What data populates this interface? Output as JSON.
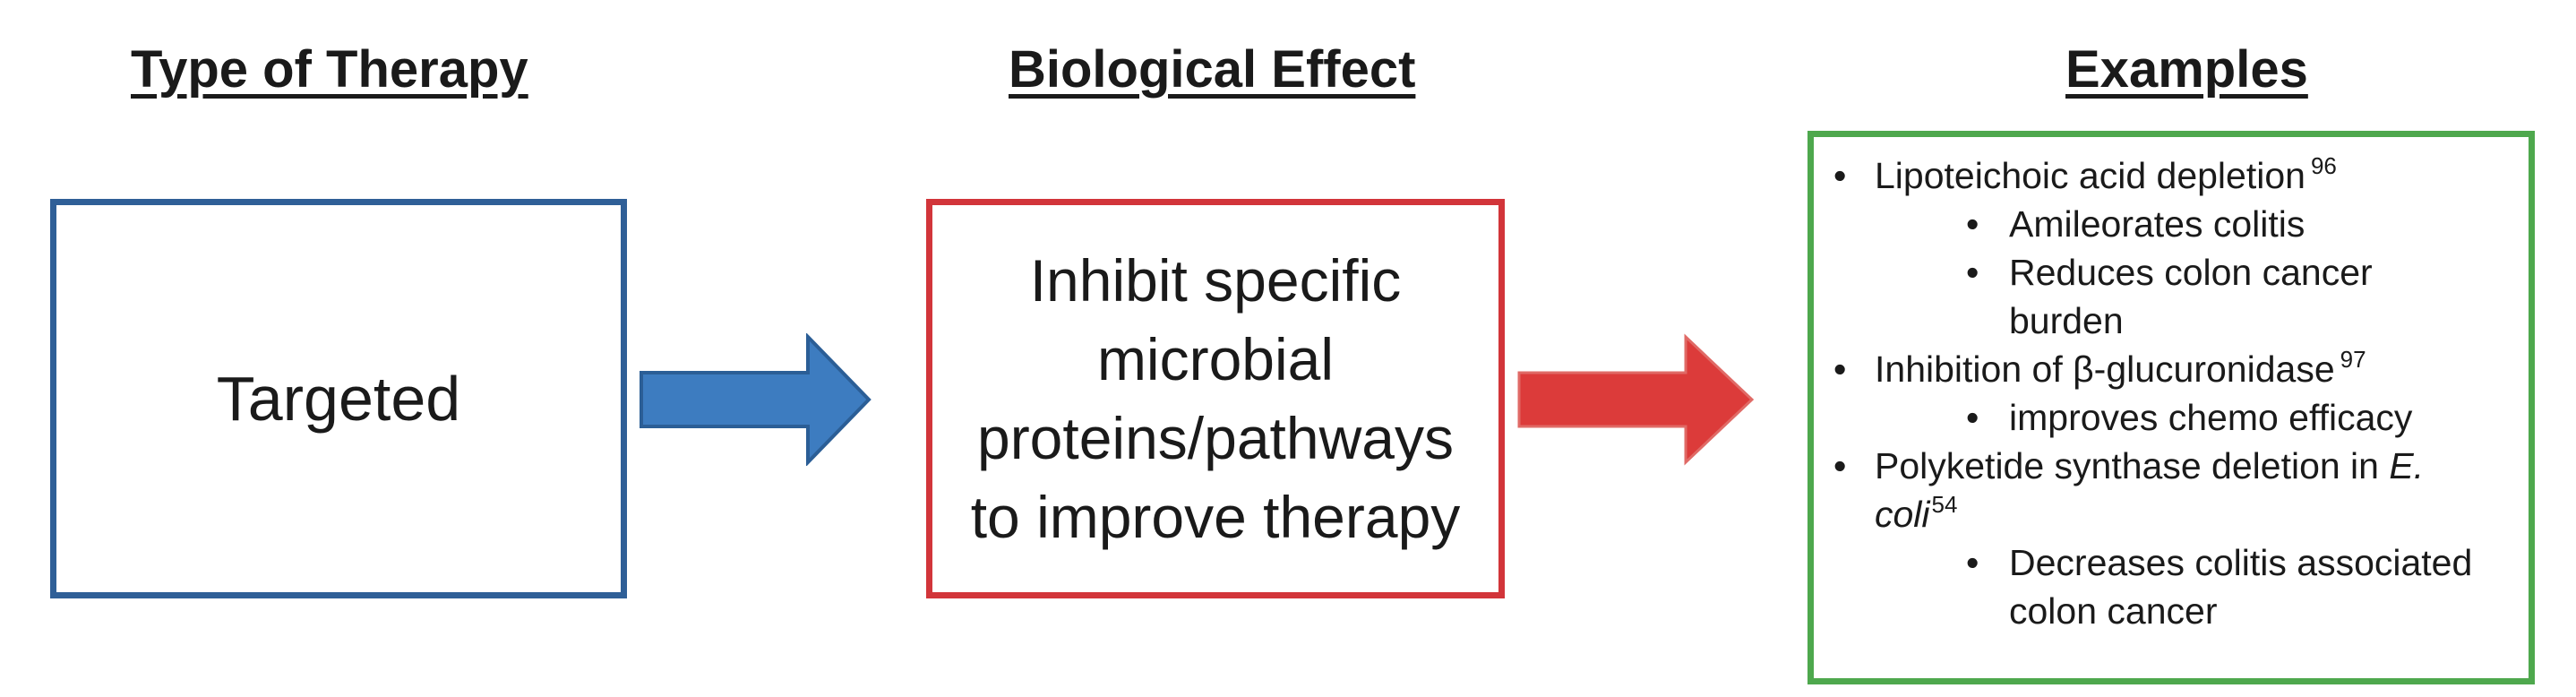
{
  "headings": {
    "type_of_therapy": "Type of Therapy",
    "biological_effect": "Biological Effect",
    "examples": "Examples"
  },
  "therapy": {
    "label": "Targeted"
  },
  "effect": {
    "lines": [
      "Inhibit specific",
      "microbial",
      "proteins/pathways",
      "to improve therapy"
    ]
  },
  "examples": {
    "items": [
      {
        "text": "Lipoteichoic acid depletion",
        "ref": "96",
        "subs": [
          "Amileorates colitis",
          "Reduces colon cancer",
          "burden"
        ]
      },
      {
        "text": "Inhibition of β-glucuronidase",
        "ref": "97",
        "subs": [
          "improves chemo efficacy"
        ]
      },
      {
        "text": "Polyketide synthase deletion in",
        "italic_line1": "E.",
        "italic_line2": "coli",
        "ref": "54",
        "subs": [
          "Decreases colitis associated",
          "colon cancer"
        ]
      }
    ]
  },
  "colors": {
    "therapy_border": "#2f5f97",
    "effect_border": "#d2353a",
    "examples_border": "#4ea84d",
    "blue_arrow": "#3d7cc0",
    "red_arrow": "#dc3b3a"
  }
}
